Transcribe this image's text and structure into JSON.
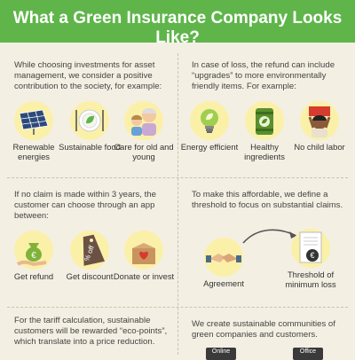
{
  "title": "What a Green Insurance Company Looks Like?",
  "sections": [
    {
      "text": "While choosing investments for asset management, we consider a positive contribution to the society, for example:",
      "items": [
        {
          "label": "Renewable energies",
          "icon": "solar-panel-icon"
        },
        {
          "label": "Sustainable food",
          "icon": "plate-leaf-icon"
        },
        {
          "label": "Care for old and young",
          "icon": "elderly-child-icon"
        }
      ]
    },
    {
      "text": "In case of loss, the refund can include “upgrades” to more environmentally friendly items. For example:",
      "items": [
        {
          "label": "Energy efficient",
          "icon": "light-bulb-icon"
        },
        {
          "label": "Healthy ingredients",
          "icon": "can-leaf-icon"
        },
        {
          "label": "No child labor",
          "icon": "child-worker-icon"
        }
      ]
    },
    {
      "text": "If no claim is made within 3 years, the customer can choose through an app between:",
      "items": [
        {
          "label": "Get refund",
          "icon": "money-bag-icon"
        },
        {
          "label": "Get discount",
          "icon": "discount-tag-icon"
        },
        {
          "label": "Donate or invest",
          "icon": "donation-box-icon"
        }
      ]
    },
    {
      "text": "To make this affordable, we define a threshold to focus on substantial claims.",
      "items": [
        {
          "label": "Agreement",
          "icon": "handshake-icon"
        },
        {
          "label": "Threshold of minimum loss",
          "icon": "document-euro-icon"
        }
      ]
    },
    {
      "text": "For the tariff calculation, sustainable customers will be rewarded “eco-points”, which translate into a price reduction."
    },
    {
      "text": "We create sustainable communities of green companies and customers.",
      "items": [
        {
          "label": "Online",
          "icon": "online-icon"
        },
        {
          "label": "Office",
          "icon": "office-icon"
        }
      ]
    }
  ],
  "colors": {
    "banner": "#5fb54a",
    "background": "#f4efe3",
    "circle": "#fbf0a8",
    "accent_green": "#5fb54a"
  }
}
